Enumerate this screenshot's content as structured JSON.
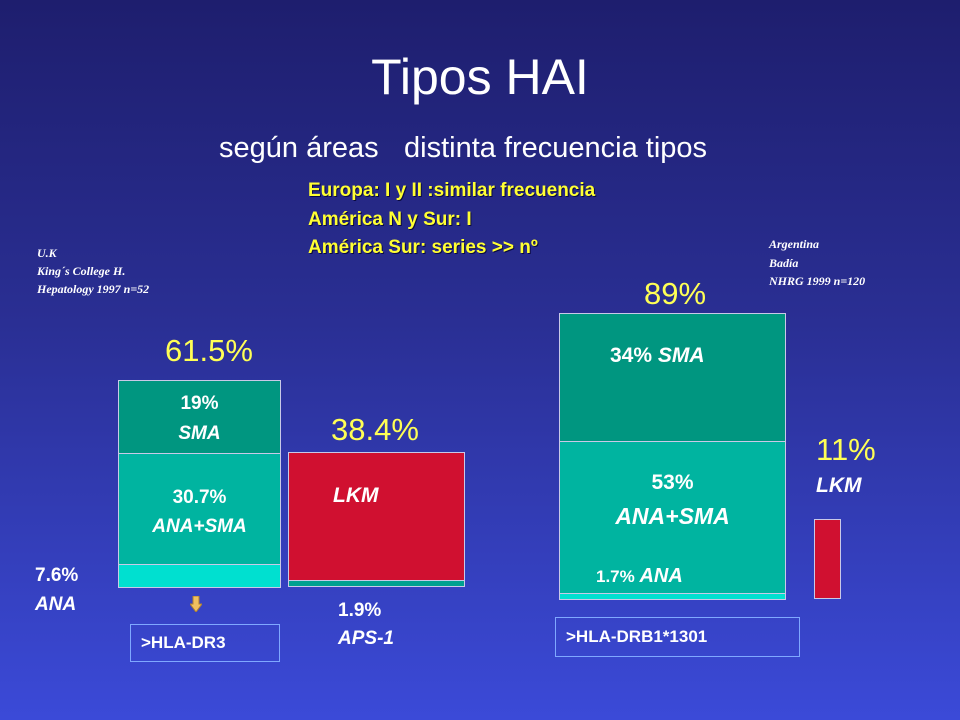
{
  "slide": {
    "title": "Tipos HAI",
    "subtitle_left": "según áreas",
    "subtitle_right": "distinta frecuencia tipos",
    "notes": [
      "Europa: I y II :similar frecuencia",
      "América N y Sur: I",
      "América Sur: series >> nº"
    ],
    "source_left": [
      "U.K",
      "King´s College H.",
      "Hepatology 1997  n=52"
    ],
    "source_right": [
      "Argentina",
      "Badía",
      "NHRG 1999  n=120"
    ]
  },
  "colors": {
    "sma": "#009680",
    "ana_sma": "#00b4a0",
    "ana": "#00e0d0",
    "lkm": "#d01030",
    "aps": "#00a090",
    "highlight": "#ffff55",
    "arrow": "#f0c060"
  },
  "uk": {
    "type1_total": "61.5%",
    "type2_total": "38.4%",
    "sma_pct": "19%",
    "sma_label": "SMA",
    "ana_sma_pct": "30.7%",
    "ana_sma_label": "ANA+SMA",
    "ana_pct": "7.6%",
    "ana_label": "ANA",
    "lkm_label": "LKM",
    "aps_pct": "1.9%",
    "aps_label": "APS-1",
    "hla": ">HLA-DR3",
    "arrow_icon": "down-arrow-icon"
  },
  "argentina": {
    "type1_total": "89%",
    "sma_pct": "34%",
    "sma_label": "SMA",
    "ana_sma_pct": "53%",
    "ana_sma_label": "ANA+SMA",
    "ana_pct": "1.7%",
    "ana_label": "ANA",
    "lkm_pct": "11%",
    "lkm_label": "LKM",
    "hla": ">HLA-DRB1*1301"
  }
}
